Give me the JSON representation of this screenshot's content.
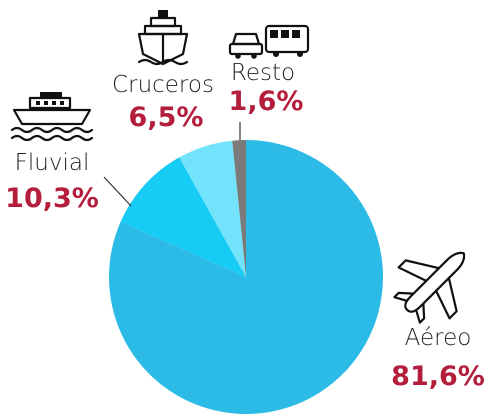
{
  "chart_data": {
    "type": "pie",
    "slices": [
      {
        "label": "Aéreo",
        "value": 81.6,
        "display": "81,6%",
        "color": "#2cbbe6",
        "icon": "airplane-icon"
      },
      {
        "label": "Fluvial",
        "value": 10.3,
        "display": "10,3%",
        "color": "#16ccf5",
        "icon": "riverboat-icon"
      },
      {
        "label": "Cruceros",
        "value": 6.5,
        "display": "6,5%",
        "color": "#72e3fb",
        "icon": "cruise-ship-icon"
      },
      {
        "label": "Resto",
        "value": 1.6,
        "display": "1,6%",
        "color": "#7a7a7a",
        "icon": "car-and-bus-icon"
      }
    ]
  }
}
